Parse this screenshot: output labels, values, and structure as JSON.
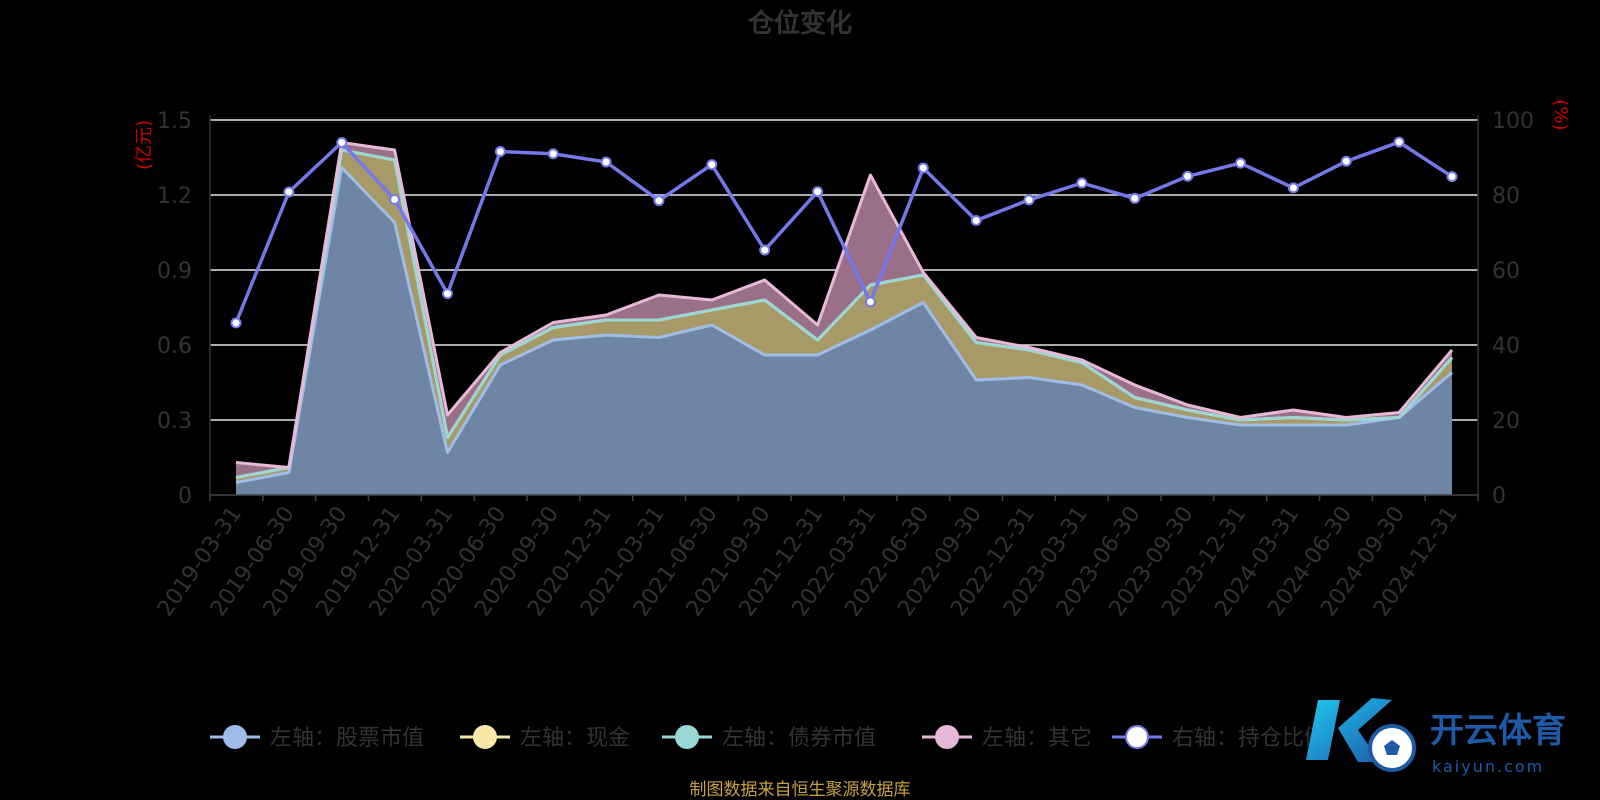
{
  "chart_data": {
    "type": "area",
    "title": "仓位变化",
    "left_axis_unit": "(亿元)",
    "right_axis_unit": "(%)",
    "left_ylim": [
      0,
      1.5
    ],
    "left_ticks": [
      "0",
      "0.3",
      "0.6",
      "0.9",
      "1.2",
      "1.5"
    ],
    "right_ylim": [
      0,
      100
    ],
    "right_ticks": [
      "0",
      "20",
      "40",
      "60",
      "80",
      "100"
    ],
    "grid": true,
    "legend_position": "bottom",
    "categories": [
      "2019-03-31",
      "2019-06-30",
      "2019-09-30",
      "2019-12-31",
      "2020-03-31",
      "2020-06-30",
      "2020-09-30",
      "2020-12-31",
      "2021-03-31",
      "2021-06-30",
      "2021-09-30",
      "2021-12-31",
      "2022-03-31",
      "2022-06-30",
      "2022-09-30",
      "2022-12-31",
      "2023-03-31",
      "2023-06-30",
      "2023-09-30",
      "2023-12-31",
      "2024-03-31",
      "2024-06-30",
      "2024-09-30",
      "2024-12-31"
    ],
    "series": [
      {
        "name": "左轴：股票市值",
        "axis": "left",
        "color": "#a0bce8",
        "fill": "#6e85a6",
        "values": [
          0.05,
          0.09,
          1.31,
          1.09,
          0.17,
          0.52,
          0.62,
          0.64,
          0.63,
          0.68,
          0.56,
          0.56,
          0.66,
          0.77,
          0.46,
          0.47,
          0.44,
          0.35,
          0.31,
          0.28,
          0.28,
          0.28,
          0.31,
          0.49
        ]
      },
      {
        "name": "左轴：现金",
        "axis": "left",
        "color": "#f8e8a8",
        "fill": "#a89a66",
        "values": [
          0.02,
          0.02,
          0.07,
          0.25,
          0.06,
          0.04,
          0.05,
          0.06,
          0.07,
          0.06,
          0.22,
          0.06,
          0.18,
          0.11,
          0.15,
          0.11,
          0.09,
          0.04,
          0.03,
          0.02,
          0.03,
          0.02,
          0.0,
          0.06
        ]
      },
      {
        "name": "左轴：债券市值",
        "axis": "left",
        "color": "#9ad8d8",
        "fill": "#4e8a8a",
        "values": [
          0,
          0,
          0,
          0,
          0,
          0,
          0,
          0,
          0,
          0,
          0,
          0,
          0,
          0,
          0,
          0,
          0,
          0,
          0,
          0,
          0,
          0,
          0,
          0
        ]
      },
      {
        "name": "左轴：其它",
        "axis": "left",
        "color": "#e8b8d8",
        "fill": "#9a7088",
        "values": [
          0.06,
          0.0,
          0.03,
          0.04,
          0.09,
          0.01,
          0.02,
          0.02,
          0.1,
          0.04,
          0.08,
          0.06,
          0.44,
          0.01,
          0.02,
          0.01,
          0.01,
          0.05,
          0.02,
          0.01,
          0.03,
          0.01,
          0.02,
          0.03
        ]
      },
      {
        "name": "右轴：持仓比例",
        "axis": "right",
        "color": "#7478e8",
        "values": [
          45.9,
          80.8,
          94.0,
          78.8,
          53.7,
          91.6,
          91.0,
          88.8,
          78.5,
          88.1,
          65.3,
          80.9,
          51.5,
          87.2,
          73.2,
          78.7,
          83.2,
          79.1,
          85.0,
          88.5,
          81.9,
          89.0,
          94.1,
          84.9
        ]
      }
    ],
    "source_note": "制图数据来自恒生聚源数据库"
  },
  "watermark": {
    "text": "开云体育",
    "sub": "kaiyun.com",
    "color": "#1e5aa8"
  }
}
